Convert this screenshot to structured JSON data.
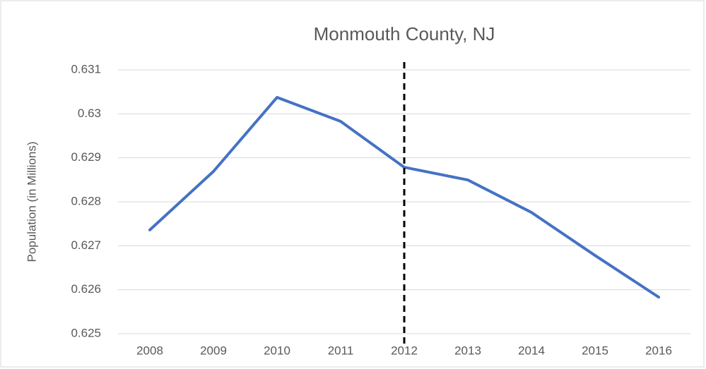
{
  "chart_data": {
    "type": "line",
    "title": "Monmouth County, NJ",
    "y_label": "Population (in Millions)",
    "categories": [
      "2008",
      "2009",
      "2010",
      "2011",
      "2012",
      "2013",
      "2014",
      "2015",
      "2016"
    ],
    "series": [
      {
        "name": "Population",
        "color": "#4472c4",
        "values": [
          0.62736,
          0.62869,
          0.630374,
          0.629828,
          0.628785,
          0.628496,
          0.627758,
          0.62678,
          0.625832
        ]
      }
    ],
    "ylim": [
      0.625,
      0.631
    ],
    "yticks": [
      0.625,
      0.626,
      0.627,
      0.628,
      0.629,
      0.63,
      0.631
    ],
    "grid": true
  }
}
